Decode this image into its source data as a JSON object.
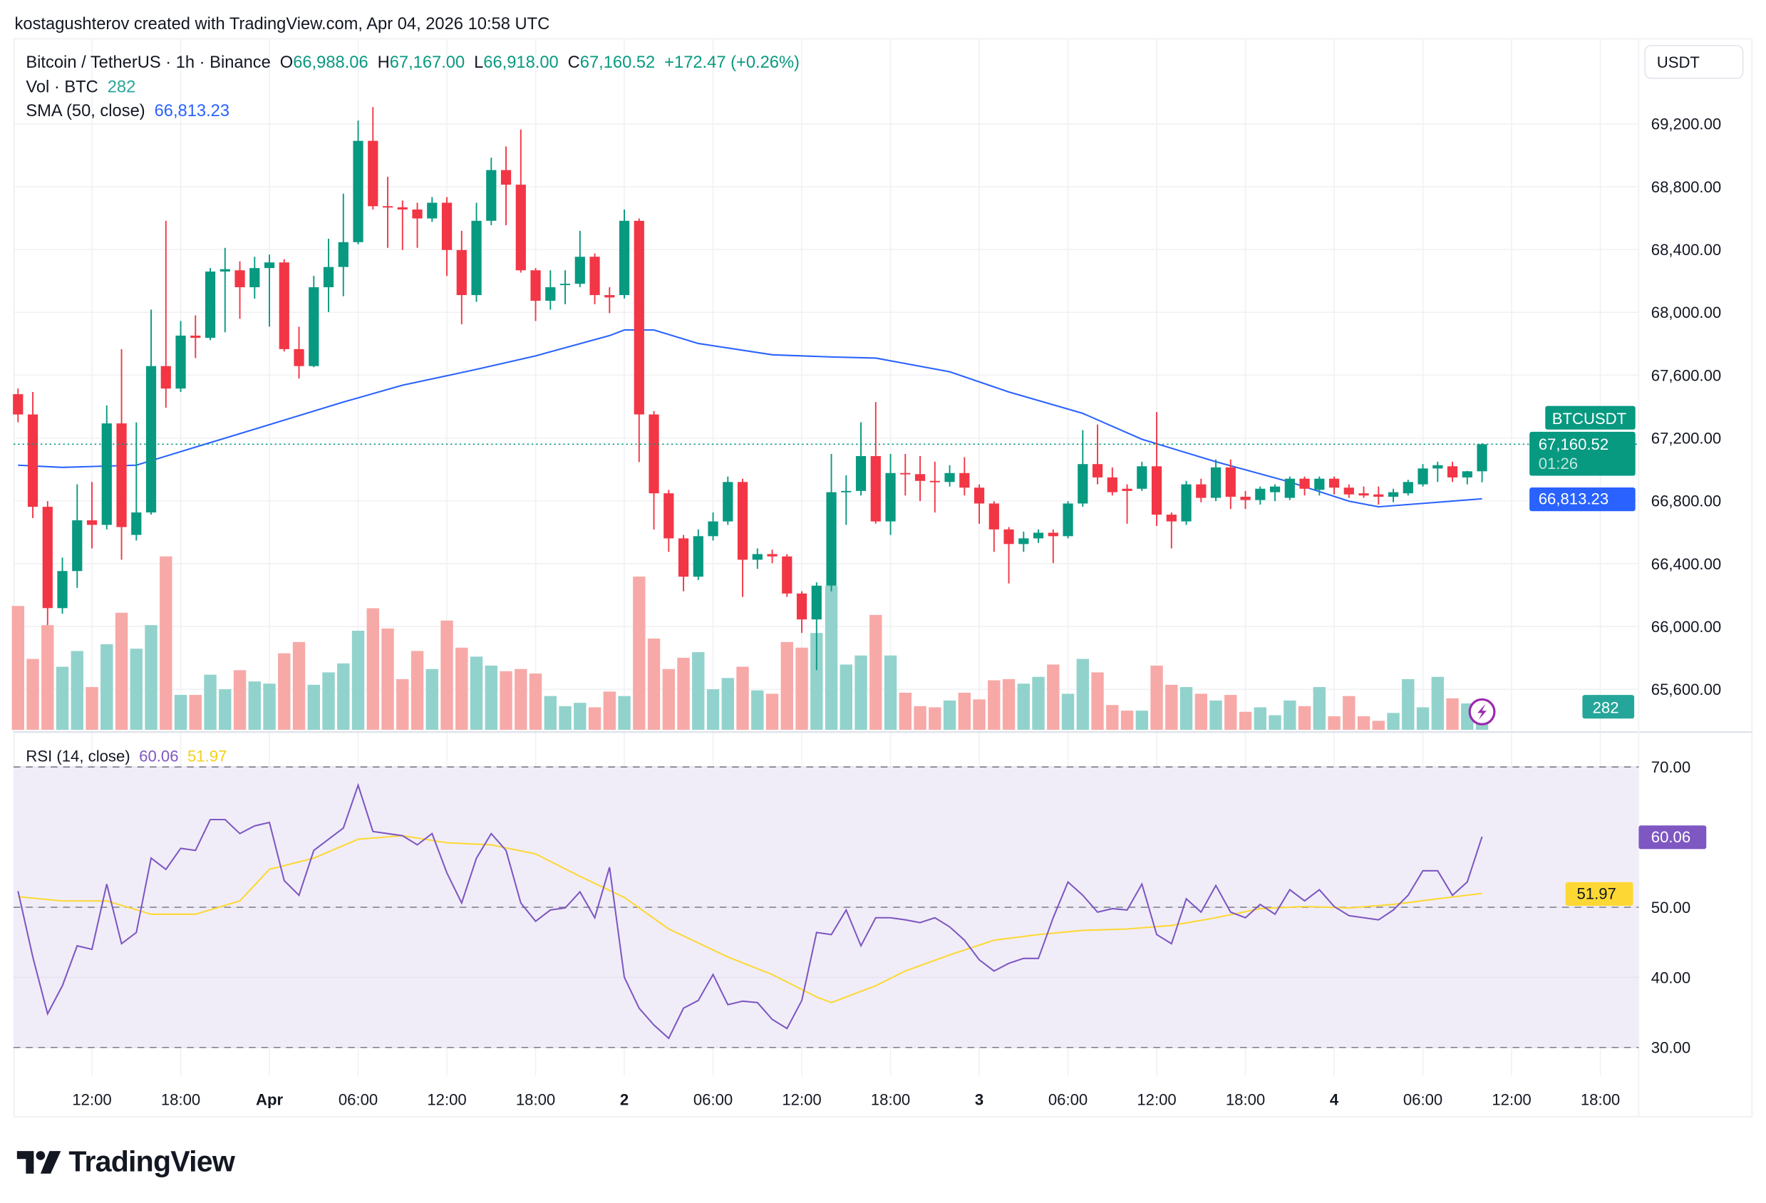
{
  "header": {
    "credit": "kostagushterov created with TradingView.com, Apr 04, 2026 10:58 UTC",
    "symbol_line": "Bitcoin / TetherUS · 1h · Binance",
    "open_label": "O",
    "open": "66,988.06",
    "high_label": "H",
    "high": "67,167.00",
    "low_label": "L",
    "low": "66,918.00",
    "close_label": "C",
    "close": "67,160.52",
    "change": "+172.47 (+0.26%)",
    "vol_label": "Vol · BTC",
    "vol_value": "282",
    "sma_label": "SMA (50, close)",
    "sma_value": "66,813.23",
    "currency_button": "USDT"
  },
  "rsi_legend": {
    "label": "RSI (14, close)",
    "rsi_value": "60.06",
    "ma_value": "51.97"
  },
  "tags": {
    "symbol": "BTCUSDT",
    "last_price": "67,160.52",
    "countdown": "01:26",
    "sma": "66,813.23",
    "volume": "282",
    "rsi": "60.06",
    "rsi_ma": "51.97"
  },
  "colors": {
    "up": "#089981",
    "down": "#f23645",
    "up_volume": "#92d2cc",
    "down_volume": "#f7a9a7",
    "sma": "#2962ff",
    "rsi": "#7e57c2",
    "rsi_ma": "#fdd835",
    "rsi_band": "#f0edf8"
  },
  "icons": {
    "alert": "lightning-icon",
    "logo": "tradingview-logo"
  },
  "logo_text": "TradingView",
  "chart_data": {
    "type": "candlestick",
    "interval": "1h",
    "price_ticks": [
      "69,200.00",
      "68,800.00",
      "68,400.00",
      "68,000.00",
      "67,600.00",
      "67,200.00",
      "66,800.00",
      "66,400.00",
      "66,000.00",
      "65,600.00"
    ],
    "price_tick_values": [
      69200,
      68800,
      68400,
      68000,
      67600,
      67200,
      66800,
      66400,
      66000,
      65600
    ],
    "time_ticks": [
      "12:00",
      "18:00",
      "Apr",
      "06:00",
      "12:00",
      "18:00",
      "2",
      "06:00",
      "12:00",
      "18:00",
      "3",
      "06:00",
      "12:00",
      "18:00",
      "4",
      "06:00",
      "12:00",
      "18:00"
    ],
    "day_ticks": [
      "Apr",
      "2",
      "3",
      "4"
    ],
    "rsi_ticks": [
      "70.00",
      "50.00",
      "40.00",
      "30.00"
    ],
    "rsi_tick_values": [
      70,
      50,
      40,
      30
    ],
    "rsi_levels": [
      70,
      50,
      30
    ],
    "grid": true,
    "candles_ohlc": [
      [
        67479,
        67515,
        67300,
        67350
      ],
      [
        67350,
        67493,
        66690,
        66762
      ],
      [
        66762,
        66798,
        66009,
        66117
      ],
      [
        66117,
        66439,
        66081,
        66353
      ],
      [
        66353,
        66905,
        66246,
        66676
      ],
      [
        66676,
        66920,
        66497,
        66647
      ],
      [
        66647,
        67407,
        66618,
        67293
      ],
      [
        67293,
        67766,
        66425,
        66633
      ],
      [
        66583,
        67300,
        66547,
        66726
      ],
      [
        66726,
        68017,
        66712,
        67658
      ],
      [
        67658,
        68583,
        67393,
        67515
      ],
      [
        67515,
        67945,
        67493,
        67852
      ],
      [
        67852,
        67981,
        67709,
        67838
      ],
      [
        67838,
        68282,
        67823,
        68260
      ],
      [
        68260,
        68411,
        67873,
        68275
      ],
      [
        68268,
        68325,
        67959,
        68160
      ],
      [
        68160,
        68354,
        68088,
        68282
      ],
      [
        68282,
        68368,
        67909,
        68318
      ],
      [
        68318,
        68339,
        67751,
        67766
      ],
      [
        67766,
        67909,
        67579,
        67658
      ],
      [
        67658,
        68232,
        67651,
        68160
      ],
      [
        68160,
        68469,
        68002,
        68289
      ],
      [
        68289,
        68756,
        68103,
        68447
      ],
      [
        68447,
        69221,
        68433,
        69092
      ],
      [
        69092,
        69307,
        68655,
        68676
      ],
      [
        68676,
        68863,
        68411,
        68669
      ],
      [
        68669,
        68712,
        68397,
        68655
      ],
      [
        68655,
        68698,
        68411,
        68598
      ],
      [
        68598,
        68734,
        68576,
        68698
      ],
      [
        68698,
        68734,
        68232,
        68397
      ],
      [
        68397,
        68519,
        67924,
        68110
      ],
      [
        68110,
        68698,
        68067,
        68583
      ],
      [
        68583,
        68985,
        68555,
        68906
      ],
      [
        68906,
        69056,
        68555,
        68813
      ],
      [
        68813,
        69164,
        68253,
        68268
      ],
      [
        68268,
        68282,
        67945,
        68074
      ],
      [
        68074,
        68268,
        68017,
        68160
      ],
      [
        68174,
        68268,
        68052,
        68182
      ],
      [
        68182,
        68519,
        68160,
        68354
      ],
      [
        68354,
        68375,
        68052,
        68110
      ],
      [
        68110,
        68160,
        67995,
        68095
      ],
      [
        68110,
        68655,
        68088,
        68583
      ],
      [
        68583,
        68598,
        67047,
        67350
      ],
      [
        67350,
        67372,
        66618,
        66848
      ],
      [
        66848,
        66870,
        66475,
        66561
      ],
      [
        66561,
        66583,
        66224,
        66317
      ],
      [
        66317,
        66618,
        66296,
        66575
      ],
      [
        66575,
        66726,
        66547,
        66669
      ],
      [
        66669,
        66955,
        66647,
        66920
      ],
      [
        66920,
        66941,
        66188,
        66425
      ],
      [
        66425,
        66497,
        66367,
        66461
      ],
      [
        66461,
        66489,
        66403,
        66446
      ],
      [
        66446,
        66461,
        66188,
        66210
      ],
      [
        66210,
        66224,
        65959,
        66045
      ],
      [
        66045,
        66281,
        65722,
        66260
      ],
      [
        66260,
        67099,
        66224,
        66855
      ],
      [
        66855,
        66963,
        66647,
        66863
      ],
      [
        66863,
        67300,
        66834,
        67085
      ],
      [
        67085,
        67429,
        66654,
        66669
      ],
      [
        66669,
        67099,
        66583,
        66977
      ],
      [
        66977,
        67099,
        66834,
        66970
      ],
      [
        66970,
        67085,
        66798,
        66927
      ],
      [
        66927,
        67049,
        66726,
        66920
      ],
      [
        66920,
        67027,
        66891,
        66977
      ],
      [
        66977,
        67078,
        66834,
        66884
      ],
      [
        66884,
        66905,
        66654,
        66783
      ],
      [
        66783,
        66798,
        66475,
        66618
      ],
      [
        66618,
        66633,
        66274,
        66525
      ],
      [
        66525,
        66604,
        66475,
        66561
      ],
      [
        66561,
        66618,
        66532,
        66597
      ],
      [
        66597,
        66618,
        66403,
        66575
      ],
      [
        66575,
        66798,
        66561,
        66783
      ],
      [
        66783,
        67250,
        66762,
        67034
      ],
      [
        67034,
        67286,
        66905,
        66949
      ],
      [
        66949,
        67013,
        66834,
        66855
      ],
      [
        66877,
        66905,
        66654,
        66863
      ],
      [
        66877,
        67049,
        66863,
        67020
      ],
      [
        67020,
        67365,
        66640,
        66712
      ],
      [
        66712,
        66726,
        66497,
        66669
      ],
      [
        66669,
        66927,
        66647,
        66905
      ],
      [
        66905,
        66941,
        66791,
        66819
      ],
      [
        66819,
        67063,
        66798,
        67013
      ],
      [
        67013,
        67063,
        66748,
        66826
      ],
      [
        66826,
        66863,
        66748,
        66805
      ],
      [
        66805,
        66891,
        66776,
        66877
      ],
      [
        66855,
        66905,
        66798,
        66891
      ],
      [
        66819,
        66955,
        66805,
        66941
      ],
      [
        66941,
        66955,
        66834,
        66877
      ],
      [
        66870,
        66955,
        66834,
        66941
      ],
      [
        66941,
        66955,
        66841,
        66884
      ],
      [
        66884,
        66905,
        66819,
        66841
      ],
      [
        66848,
        66891,
        66819,
        66834
      ],
      [
        66841,
        66891,
        66776,
        66826
      ],
      [
        66826,
        66877,
        66791,
        66855
      ],
      [
        66848,
        66934,
        66834,
        66920
      ],
      [
        66905,
        67034,
        66891,
        67006
      ],
      [
        67006,
        67049,
        66920,
        67027
      ],
      [
        67020,
        67049,
        66920,
        66949
      ],
      [
        66949,
        66991,
        66905,
        66988.06
      ],
      [
        66988.06,
        67167,
        66918,
        67160.52
      ]
    ],
    "volumes": [
      1408,
      806,
      1190,
      717,
      896,
      486,
      973,
      1331,
      922,
      1190,
      1971,
      397,
      397,
      627,
      461,
      678,
      550,
      525,
      870,
      998,
      512,
      653,
      755,
      1126,
      1382,
      1152,
      576,
      896,
      691,
      1242,
      934,
      832,
      730,
      666,
      691,
      640,
      384,
      269,
      307,
      256,
      435,
      384,
      1741,
      1037,
      691,
      819,
      883,
      461,
      589,
      717,
      448,
      410,
      998,
      934,
      1101,
      1638,
      742,
      845,
      1306,
      845,
      422,
      269,
      256,
      333,
      422,
      346,
      563,
      576,
      525,
      602,
      742,
      410,
      806,
      653,
      282,
      218,
      218,
      730,
      512,
      486,
      410,
      333,
      397,
      205,
      256,
      166,
      333,
      269,
      486,
      154,
      384,
      154,
      102,
      192,
      576,
      256,
      602,
      358,
      300,
      282
    ],
    "sma_50": [
      [
        "03-31 07:00",
        67027
      ],
      [
        "03-31 10:00",
        67013
      ],
      [
        "03-31 15:00",
        67027
      ],
      [
        "03-31 19:00",
        67142
      ],
      [
        "04-01 00:00",
        67285
      ],
      [
        "04-01 05:00",
        67429
      ],
      [
        "04-01 09:00",
        67536
      ],
      [
        "04-01 14:00",
        67637
      ],
      [
        "04-01 18:00",
        67723
      ],
      [
        "04-01 23:00",
        67852
      ],
      [
        "04-02 00:00",
        67888
      ],
      [
        "04-02 02:00",
        67888
      ],
      [
        "04-02 05:00",
        67802
      ],
      [
        "04-02 10:00",
        67730
      ],
      [
        "04-02 14:00",
        67716
      ],
      [
        "04-02 17:00",
        67709
      ],
      [
        "04-02 22:00",
        67622
      ],
      [
        "04-03 02:00",
        67493
      ],
      [
        "04-03 07:00",
        67357
      ],
      [
        "04-03 11:00",
        67192
      ],
      [
        "04-03 16:00",
        67049
      ],
      [
        "04-03 21:00",
        66920
      ],
      [
        "04-04 01:00",
        66798
      ],
      [
        "04-04 03:00",
        66762
      ],
      [
        "04-04 07:00",
        66791
      ],
      [
        "04-04 10:00",
        66813.23
      ]
    ],
    "rsi": [
      52.3,
      42.9,
      34.8,
      38.8,
      44.5,
      44.0,
      53.3,
      44.8,
      46.4,
      57.0,
      55.4,
      58.4,
      58.1,
      62.5,
      62.5,
      60.5,
      61.6,
      62.1,
      53.8,
      51.7,
      58.1,
      59.7,
      61.3,
      67.4,
      60.8,
      60.5,
      60.2,
      58.9,
      60.5,
      54.9,
      50.6,
      57.0,
      60.5,
      58.1,
      50.6,
      48.0,
      49.6,
      49.9,
      52.2,
      48.5,
      55.7,
      40.0,
      35.6,
      33.2,
      31.3,
      35.6,
      36.7,
      40.4,
      36.1,
      36.6,
      36.4,
      34.0,
      32.7,
      36.7,
      46.4,
      46.1,
      49.6,
      44.5,
      48.5,
      48.5,
      48.2,
      47.8,
      48.5,
      47.2,
      45.3,
      42.5,
      40.9,
      42.0,
      42.7,
      42.7,
      48.5,
      53.6,
      51.7,
      49.3,
      49.8,
      49.6,
      53.3,
      46.1,
      44.8,
      51.2,
      49.3,
      53.1,
      49.3,
      48.5,
      50.4,
      49.0,
      52.5,
      50.9,
      52.5,
      50.1,
      48.8,
      48.5,
      48.2,
      49.6,
      51.7,
      55.2,
      55.2,
      51.7,
      53.6,
      60.06
    ],
    "rsi_ma": [
      [
        "03-31 07:00",
        51.5
      ],
      [
        "03-31 10:00",
        50.9
      ],
      [
        "03-31 13:00",
        50.9
      ],
      [
        "03-31 16:00",
        49.0
      ],
      [
        "03-31 19:00",
        49.0
      ],
      [
        "03-31 22:00",
        50.9
      ],
      [
        "04-01 00:00",
        55.4
      ],
      [
        "04-01 03:00",
        57.0
      ],
      [
        "04-01 06:00",
        59.7
      ],
      [
        "04-01 09:00",
        60.2
      ],
      [
        "04-01 12:00",
        59.2
      ],
      [
        "04-01 15:00",
        58.9
      ],
      [
        "04-01 18:00",
        57.6
      ],
      [
        "04-01 21:00",
        54.4
      ],
      [
        "04-02 00:00",
        51.4
      ],
      [
        "04-02 03:00",
        46.9
      ],
      [
        "04-02 07:00",
        42.9
      ],
      [
        "04-02 10:00",
        40.4
      ],
      [
        "04-02 13:00",
        37.2
      ],
      [
        "04-02 14:00",
        36.4
      ],
      [
        "04-02 17:00",
        38.8
      ],
      [
        "04-02 19:00",
        40.9
      ],
      [
        "04-02 22:00",
        43.2
      ],
      [
        "04-03 01:00",
        45.3
      ],
      [
        "04-03 04:00",
        46.1
      ],
      [
        "04-03 07:00",
        46.7
      ],
      [
        "04-03 10:00",
        46.9
      ],
      [
        "04-03 13:00",
        47.4
      ],
      [
        "04-03 16:00",
        48.5
      ],
      [
        "04-03 19:00",
        49.8
      ],
      [
        "04-03 22:00",
        50.1
      ],
      [
        "04-04 01:00",
        49.9
      ],
      [
        "04-04 04:00",
        50.4
      ],
      [
        "04-04 07:00",
        51.2
      ],
      [
        "04-04 10:00",
        51.97
      ]
    ]
  }
}
